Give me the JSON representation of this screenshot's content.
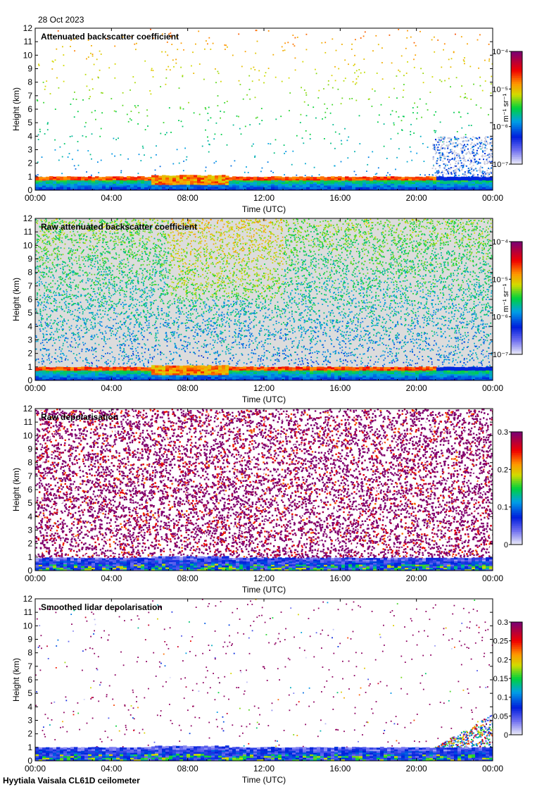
{
  "page": {
    "date": "28 Oct 2023",
    "footer": "Hyytiala Vaisala CL61D ceilometer"
  },
  "chart_data": [
    {
      "type": "heatmap",
      "title": "Attenuated backscatter coefficient",
      "xlabel": "Time (UTC)",
      "ylabel": "Height (km)",
      "x_ticks": [
        "00:00",
        "04:00",
        "08:00",
        "12:00",
        "16:00",
        "20:00",
        "00:00"
      ],
      "xlim_hours": [
        0,
        24
      ],
      "ylim": [
        0,
        12
      ],
      "y_ticks": [
        0,
        1,
        2,
        3,
        4,
        5,
        6,
        7,
        8,
        9,
        10,
        11,
        12
      ],
      "colorbar": {
        "scale": "log",
        "range": [
          1e-07,
          0.0001
        ],
        "units": "m⁻¹ sr⁻¹",
        "ticks": [
          "10⁻⁴",
          "10⁻⁵",
          "10⁻⁶",
          "10⁻⁷"
        ]
      },
      "features": {
        "boundary_layer_top_km": 1.0,
        "strongest_backscatter_hours": [
          6,
          10
        ],
        "noise": "sparse",
        "evening_gray_region_start_hour": 20.8
      }
    },
    {
      "type": "heatmap",
      "title": "Raw attenuated backscatter coefficient",
      "xlabel": "Time (UTC)",
      "ylabel": "Height (km)",
      "x_ticks": [
        "00:00",
        "04:00",
        "08:00",
        "12:00",
        "16:00",
        "20:00",
        "00:00"
      ],
      "xlim_hours": [
        0,
        24
      ],
      "ylim": [
        0,
        12
      ],
      "y_ticks": [
        0,
        1,
        2,
        3,
        4,
        5,
        6,
        7,
        8,
        9,
        10,
        11,
        12
      ],
      "colorbar": {
        "scale": "log",
        "range": [
          1e-07,
          0.0001
        ],
        "units": "m⁻¹ sr⁻¹",
        "ticks": [
          "10⁻⁴",
          "10⁻⁵",
          "10⁻⁶",
          "10⁻⁷"
        ]
      },
      "features": {
        "boundary_layer_top_km": 1.0,
        "noise": "dense",
        "gray_background": true
      }
    },
    {
      "type": "heatmap",
      "title": "Raw depolarisation",
      "xlabel": "Time (UTC)",
      "ylabel": "Height (km)",
      "x_ticks": [
        "00:00",
        "04:00",
        "08:00",
        "12:00",
        "16:00",
        "20:00",
        "00:00"
      ],
      "xlim_hours": [
        0,
        24
      ],
      "ylim": [
        0,
        12
      ],
      "y_ticks": [
        0,
        1,
        2,
        3,
        4,
        5,
        6,
        7,
        8,
        9,
        10,
        11,
        12
      ],
      "colorbar": {
        "scale": "linear",
        "range": [
          0,
          0.3
        ],
        "ticks": [
          "0.3",
          "0.2",
          "0.1",
          "0"
        ]
      },
      "features": {
        "boundary_layer_top_km": 0.95,
        "noise": "saturated"
      }
    },
    {
      "type": "heatmap",
      "title": "Smoothed lidar depolarisation",
      "xlabel": "Time (UTC)",
      "ylabel": "Height (km)",
      "x_ticks": [
        "00:00",
        "04:00",
        "08:00",
        "12:00",
        "16:00",
        "20:00",
        "00:00"
      ],
      "xlim_hours": [
        0,
        24
      ],
      "ylim": [
        0,
        12
      ],
      "y_ticks": [
        0,
        1,
        2,
        3,
        4,
        5,
        6,
        7,
        8,
        9,
        10,
        11,
        12
      ],
      "colorbar": {
        "scale": "linear",
        "range": [
          0,
          0.3
        ],
        "ticks": [
          "0.3",
          "0.25",
          "0.2",
          "0.15",
          "0.1",
          "0.05",
          "0"
        ]
      },
      "features": {
        "boundary_layer_top_km": 1.0,
        "noise": "sparse-depol",
        "evening_rain_region_start_hour": 20.8
      }
    }
  ]
}
